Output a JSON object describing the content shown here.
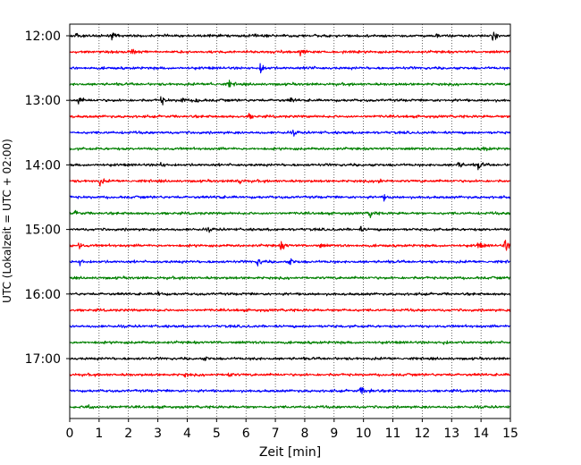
{
  "chart_data": {
    "type": "line",
    "title": "",
    "xlabel": "Zeit  [min]",
    "ylabel": "UTC (Lokalzeit = UTC + 02:00)",
    "xlim": [
      0,
      15
    ],
    "x_ticks": [
      0,
      1,
      2,
      3,
      4,
      5,
      6,
      7,
      8,
      9,
      10,
      11,
      12,
      13,
      14,
      15
    ],
    "x_tick_labels": [
      "0",
      "1",
      "2",
      "3",
      "4",
      "5",
      "6",
      "7",
      "8",
      "9",
      "10",
      "11",
      "12",
      "13",
      "14",
      "15"
    ],
    "y_tick_labels": [
      "12:00",
      "13:00",
      "14:00",
      "15:00",
      "16:00",
      "17:00"
    ],
    "grid": {
      "vertical": true,
      "style": "dotted"
    },
    "trace_interval_min": 15,
    "trace_colors": [
      "#000000",
      "#ff0000",
      "#0000ff",
      "#008000"
    ],
    "traces": [
      {
        "start": "12:00",
        "color": "#000000",
        "events": [
          [
            0.2,
            0.9
          ],
          [
            1.4,
            0.9
          ],
          [
            3.0,
            0.4
          ],
          [
            6.2,
            0.3
          ],
          [
            12.5,
            0.4
          ],
          [
            14.4,
            1.1
          ]
        ]
      },
      {
        "start": "12:15",
        "color": "#ff0000",
        "events": [
          [
            2.1,
            1.0
          ],
          [
            7.4,
            0.6
          ],
          [
            7.85,
            1.4
          ]
        ]
      },
      {
        "start": "12:30",
        "color": "#0000ff",
        "events": [
          [
            6.5,
            1.5
          ],
          [
            8.1,
            0.6
          ]
        ]
      },
      {
        "start": "12:45",
        "color": "#008000",
        "events": [
          [
            5.4,
            1.0
          ],
          [
            4.8,
            0.5
          ]
        ]
      },
      {
        "start": "13:00",
        "color": "#000000",
        "events": [
          [
            0.3,
            0.9
          ],
          [
            3.1,
            1.0
          ],
          [
            3.8,
            0.8
          ],
          [
            4.3,
            0.8
          ],
          [
            7.5,
            0.6
          ]
        ]
      },
      {
        "start": "13:15",
        "color": "#ff0000",
        "events": [
          [
            6.1,
            0.6
          ]
        ]
      },
      {
        "start": "13:30",
        "color": "#0000ff",
        "events": [
          [
            7.6,
            0.5
          ]
        ]
      },
      {
        "start": "13:45",
        "color": "#008000",
        "events": [
          [
            14.1,
            0.6
          ]
        ]
      },
      {
        "start": "14:00",
        "color": "#000000",
        "events": [
          [
            3.1,
            0.6
          ],
          [
            13.2,
            1.0
          ],
          [
            13.9,
            1.0
          ]
        ]
      },
      {
        "start": "14:15",
        "color": "#ff0000",
        "events": [
          [
            1.0,
            1.0
          ],
          [
            5.7,
            1.2
          ],
          [
            10.5,
            0.9
          ]
        ]
      },
      {
        "start": "14:30",
        "color": "#0000ff",
        "events": [
          [
            5.0,
            0.4
          ],
          [
            10.7,
            0.6
          ]
        ]
      },
      {
        "start": "14:45",
        "color": "#008000",
        "events": [
          [
            0.2,
            0.6
          ],
          [
            10.2,
            1.1
          ]
        ]
      },
      {
        "start": "15:00",
        "color": "#000000",
        "events": [
          [
            4.7,
            0.4
          ],
          [
            9.9,
            0.4
          ]
        ]
      },
      {
        "start": "15:15",
        "color": "#ff0000",
        "events": [
          [
            0.3,
            0.7
          ],
          [
            7.2,
            1.3
          ],
          [
            8.5,
            0.5
          ],
          [
            13.9,
            1.0
          ],
          [
            14.8,
            1.5
          ]
        ]
      },
      {
        "start": "15:30",
        "color": "#0000ff",
        "events": [
          [
            0.35,
            0.7
          ],
          [
            6.4,
            1.0
          ],
          [
            7.5,
            0.8
          ]
        ]
      },
      {
        "start": "15:45",
        "color": "#008000",
        "events": []
      },
      {
        "start": "16:00",
        "color": "#000000",
        "events": [
          [
            3.0,
            0.6
          ]
        ]
      },
      {
        "start": "16:15",
        "color": "#ff0000",
        "events": [
          [
            9.3,
            0.4
          ]
        ]
      },
      {
        "start": "16:30",
        "color": "#0000ff",
        "events": []
      },
      {
        "start": "16:45",
        "color": "#008000",
        "events": [
          [
            12.7,
            0.5
          ]
        ]
      },
      {
        "start": "17:00",
        "color": "#000000",
        "events": [
          [
            4.6,
            0.4
          ],
          [
            6.3,
            0.3
          ]
        ]
      },
      {
        "start": "17:15",
        "color": "#ff0000",
        "events": [
          [
            3.9,
            0.4
          ],
          [
            5.4,
            0.6
          ]
        ]
      },
      {
        "start": "17:30",
        "color": "#0000ff",
        "events": [
          [
            9.9,
            1.0
          ],
          [
            10.2,
            0.6
          ]
        ]
      },
      {
        "start": "17:45",
        "color": "#008000",
        "events": [
          [
            0.6,
            1.1
          ],
          [
            1.3,
            0.4
          ]
        ]
      }
    ]
  }
}
